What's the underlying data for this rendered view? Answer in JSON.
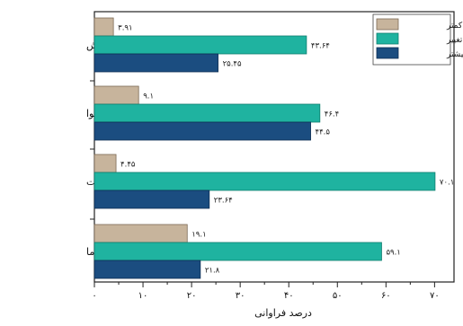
{
  "chart_data": {
    "type": "bar",
    "orientation": "horizontal",
    "categories": [
      "ترجیح تابش",
      "ترجیح جریان هوا",
      "ترجیح رطوبت",
      "ترجیح دما"
    ],
    "series": [
      {
        "name": "کمتر",
        "values": [
          3.91,
          9.1,
          4.45,
          19.1
        ],
        "labels": [
          "۳.۹۱",
          "۹.۱",
          "۴.۴۵",
          "۱۹.۱"
        ],
        "color": "#c7b49c"
      },
      {
        "name": "بدون تغییر",
        "values": [
          43.64,
          46.4,
          70.1,
          59.1
        ],
        "labels": [
          "۴۳.۶۴",
          "۴۶.۴",
          "۷۰.۱",
          "۵۹.۱"
        ],
        "color": "#1fb3a0"
      },
      {
        "name": "بیشتر",
        "values": [
          25.45,
          44.5,
          23.64,
          21.8
        ],
        "labels": [
          "۲۵.۴۵",
          "۴۴.۵",
          "۲۳.۶۴",
          "۲۱.۸"
        ],
        "color": "#1b4d80"
      }
    ],
    "xlabel": "درصد فراوانی",
    "ylabel": "",
    "xlim": [
      0,
      74
    ],
    "xticks": [
      0,
      10,
      20,
      30,
      40,
      50,
      60,
      70
    ],
    "xtick_labels": [
      "۰",
      "۱۰",
      "۲۰",
      "۳۰",
      "۴۰",
      "۵۰",
      "۶۰",
      "۷۰"
    ],
    "legend_position": "top-right",
    "grid": false
  }
}
